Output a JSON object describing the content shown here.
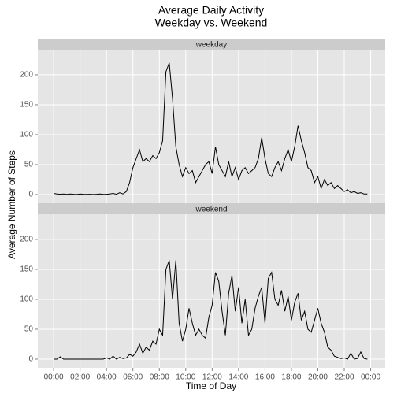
{
  "chart_data": {
    "type": "line",
    "title": [
      "Average Daily Activity",
      "Weekday vs. Weekend"
    ],
    "x_label": "Time of Day",
    "y_label": "Average Number of Steps",
    "facet": true,
    "grid": true,
    "x": [
      0,
      0.25,
      0.5,
      0.75,
      1,
      1.25,
      1.5,
      1.75,
      2,
      2.25,
      2.5,
      2.75,
      3,
      3.25,
      3.5,
      3.75,
      4,
      4.25,
      4.5,
      4.75,
      5,
      5.25,
      5.5,
      5.75,
      6,
      6.25,
      6.5,
      6.75,
      7,
      7.25,
      7.5,
      7.75,
      8,
      8.25,
      8.5,
      8.75,
      9,
      9.25,
      9.5,
      9.75,
      10,
      10.25,
      10.5,
      10.75,
      11,
      11.25,
      11.5,
      11.75,
      12,
      12.25,
      12.5,
      12.75,
      13,
      13.25,
      13.5,
      13.75,
      14,
      14.25,
      14.5,
      14.75,
      15,
      15.25,
      15.5,
      15.75,
      16,
      16.25,
      16.5,
      16.75,
      17,
      17.25,
      17.5,
      17.75,
      18,
      18.25,
      18.5,
      18.75,
      19,
      19.25,
      19.5,
      19.75,
      20,
      20.25,
      20.5,
      20.75,
      21,
      21.25,
      21.5,
      21.75,
      22,
      22.25,
      22.5,
      22.75,
      23,
      23.25,
      23.5,
      23.75
    ],
    "series": [
      {
        "name": "weekday",
        "color": "#000000",
        "values": [
          2,
          1,
          0.5,
          1,
          0.3,
          1,
          0.5,
          0.2,
          1,
          0.5,
          0.3,
          0.5,
          0.2,
          0.5,
          1,
          0.3,
          0.5,
          1,
          2,
          0.5,
          3,
          1,
          5,
          20,
          45,
          60,
          75,
          55,
          60,
          55,
          65,
          60,
          70,
          90,
          205,
          220,
          160,
          80,
          50,
          30,
          45,
          35,
          40,
          20,
          30,
          40,
          50,
          55,
          35,
          80,
          50,
          40,
          30,
          55,
          30,
          45,
          25,
          40,
          45,
          35,
          40,
          45,
          60,
          95,
          60,
          35,
          30,
          45,
          55,
          40,
          60,
          75,
          55,
          80,
          115,
          90,
          70,
          45,
          40,
          20,
          30,
          10,
          25,
          15,
          20,
          10,
          15,
          10,
          5,
          8,
          3,
          5,
          2,
          3,
          1,
          1
        ]
      },
      {
        "name": "weekend",
        "color": "#000000",
        "values": [
          0,
          0,
          4,
          0,
          0,
          0,
          0,
          0,
          0,
          0,
          0,
          0,
          0,
          0,
          0,
          0,
          2,
          0,
          5,
          0,
          3,
          1,
          2,
          8,
          5,
          12,
          25,
          10,
          20,
          15,
          30,
          25,
          50,
          40,
          150,
          165,
          100,
          165,
          60,
          30,
          50,
          85,
          60,
          40,
          50,
          40,
          35,
          70,
          90,
          145,
          130,
          80,
          40,
          110,
          140,
          80,
          120,
          60,
          100,
          40,
          50,
          85,
          105,
          120,
          60,
          135,
          145,
          100,
          90,
          115,
          80,
          105,
          65,
          95,
          110,
          65,
          80,
          50,
          45,
          65,
          85,
          60,
          45,
          20,
          15,
          5,
          3,
          1,
          2,
          0,
          10,
          0,
          1,
          12,
          1,
          0
        ]
      }
    ],
    "xlim": [
      -1.2,
      25.1
    ],
    "ylim": [
      -14.5,
      242
    ],
    "xticks": [
      {
        "value": 0,
        "label": "00:00"
      },
      {
        "value": 2,
        "label": "02:00"
      },
      {
        "value": 4,
        "label": "04:00"
      },
      {
        "value": 6,
        "label": "06:00"
      },
      {
        "value": 8,
        "label": "08:00"
      },
      {
        "value": 10,
        "label": "10:00"
      },
      {
        "value": 12,
        "label": "12:00"
      },
      {
        "value": 14,
        "label": "14:00"
      },
      {
        "value": 16,
        "label": "16:00"
      },
      {
        "value": 18,
        "label": "18:00"
      },
      {
        "value": 20,
        "label": "20:00"
      },
      {
        "value": 22,
        "label": "22:00"
      },
      {
        "value": 24,
        "label": "00:00"
      }
    ],
    "yticks": [
      0,
      50,
      100,
      150,
      200
    ]
  }
}
